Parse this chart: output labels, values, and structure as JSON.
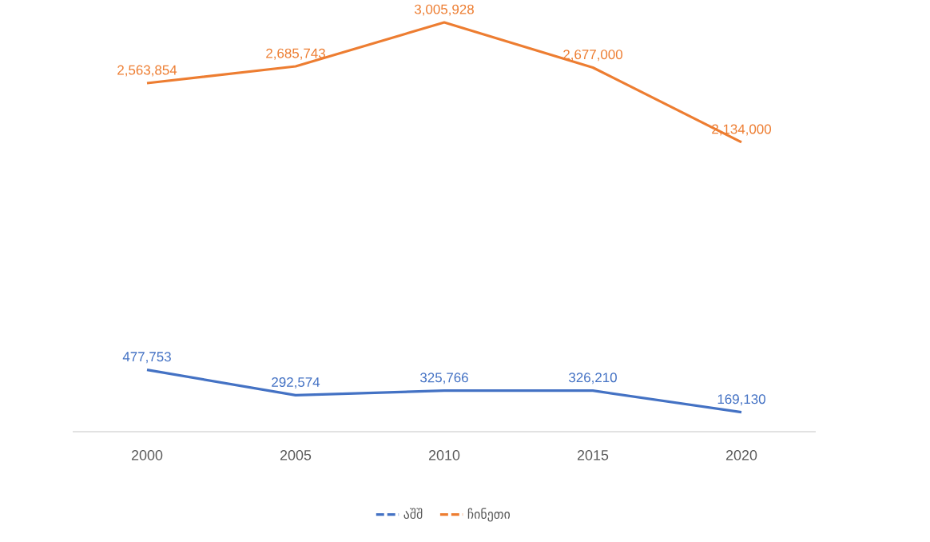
{
  "chart_data": {
    "type": "line",
    "categories": [
      "2000",
      "2005",
      "2010",
      "2015",
      "2020"
    ],
    "series": [
      {
        "name": "აშშ",
        "color": "#4472c4",
        "values": [
          477753,
          292574,
          325766,
          326210,
          169130
        ],
        "value_labels": [
          "477,753",
          "292,574",
          "325,766",
          "326,210",
          "169,130"
        ]
      },
      {
        "name": "ჩინეთი",
        "color": "#ed7d31",
        "values": [
          2563854,
          2685743,
          3005928,
          2677000,
          2134000
        ],
        "value_labels": [
          "2,563,854",
          "2,685,743",
          "3,005,928",
          "2,677,000",
          "2,134,000"
        ]
      }
    ],
    "legend": "bottom",
    "grid": false,
    "marker": "none",
    "line_style": "solid"
  }
}
